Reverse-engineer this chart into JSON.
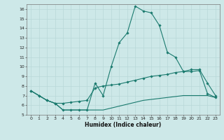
{
  "xlabel": "Humidex (Indice chaleur)",
  "xlim": [
    -0.5,
    23.5
  ],
  "ylim": [
    5,
    16.5
  ],
  "yticks": [
    5,
    6,
    7,
    8,
    9,
    10,
    11,
    12,
    13,
    14,
    15,
    16
  ],
  "xticks": [
    0,
    1,
    2,
    3,
    4,
    5,
    6,
    7,
    8,
    9,
    10,
    11,
    12,
    13,
    14,
    15,
    16,
    17,
    18,
    19,
    20,
    21,
    22,
    23
  ],
  "bg_color": "#cde8e8",
  "line_color": "#1a7a6e",
  "grid_color": "#b8d8d8",
  "line1_x": [
    0,
    1,
    2,
    3,
    4,
    5,
    6,
    7,
    8,
    9,
    10,
    11,
    12,
    13,
    14,
    15,
    16,
    17,
    18,
    19,
    20,
    21,
    22,
    23
  ],
  "line1_y": [
    7.5,
    7.0,
    6.5,
    6.2,
    5.5,
    5.5,
    5.5,
    5.5,
    8.3,
    7.0,
    10.0,
    12.5,
    13.5,
    16.3,
    15.8,
    15.6,
    14.3,
    11.5,
    11.0,
    9.5,
    9.7,
    9.7,
    8.3,
    7.0
  ],
  "line2_x": [
    0,
    1,
    2,
    3,
    4,
    5,
    6,
    7,
    8,
    9,
    10,
    11,
    12,
    13,
    14,
    15,
    16,
    17,
    18,
    19,
    20,
    21,
    22,
    23
  ],
  "line2_y": [
    7.5,
    7.0,
    6.5,
    6.2,
    6.2,
    6.3,
    6.4,
    6.5,
    7.8,
    8.0,
    8.1,
    8.2,
    8.4,
    8.6,
    8.8,
    9.0,
    9.1,
    9.2,
    9.4,
    9.5,
    9.5,
    9.6,
    7.2,
    6.8
  ],
  "line3_x": [
    0,
    1,
    2,
    3,
    4,
    5,
    6,
    7,
    8,
    9,
    10,
    11,
    12,
    13,
    14,
    15,
    16,
    17,
    18,
    19,
    20,
    21,
    22,
    23
  ],
  "line3_y": [
    7.5,
    7.0,
    6.5,
    6.2,
    5.5,
    5.5,
    5.5,
    5.5,
    5.5,
    5.5,
    5.7,
    5.9,
    6.1,
    6.3,
    6.5,
    6.6,
    6.7,
    6.8,
    6.9,
    7.0,
    7.0,
    7.0,
    7.0,
    6.8
  ]
}
